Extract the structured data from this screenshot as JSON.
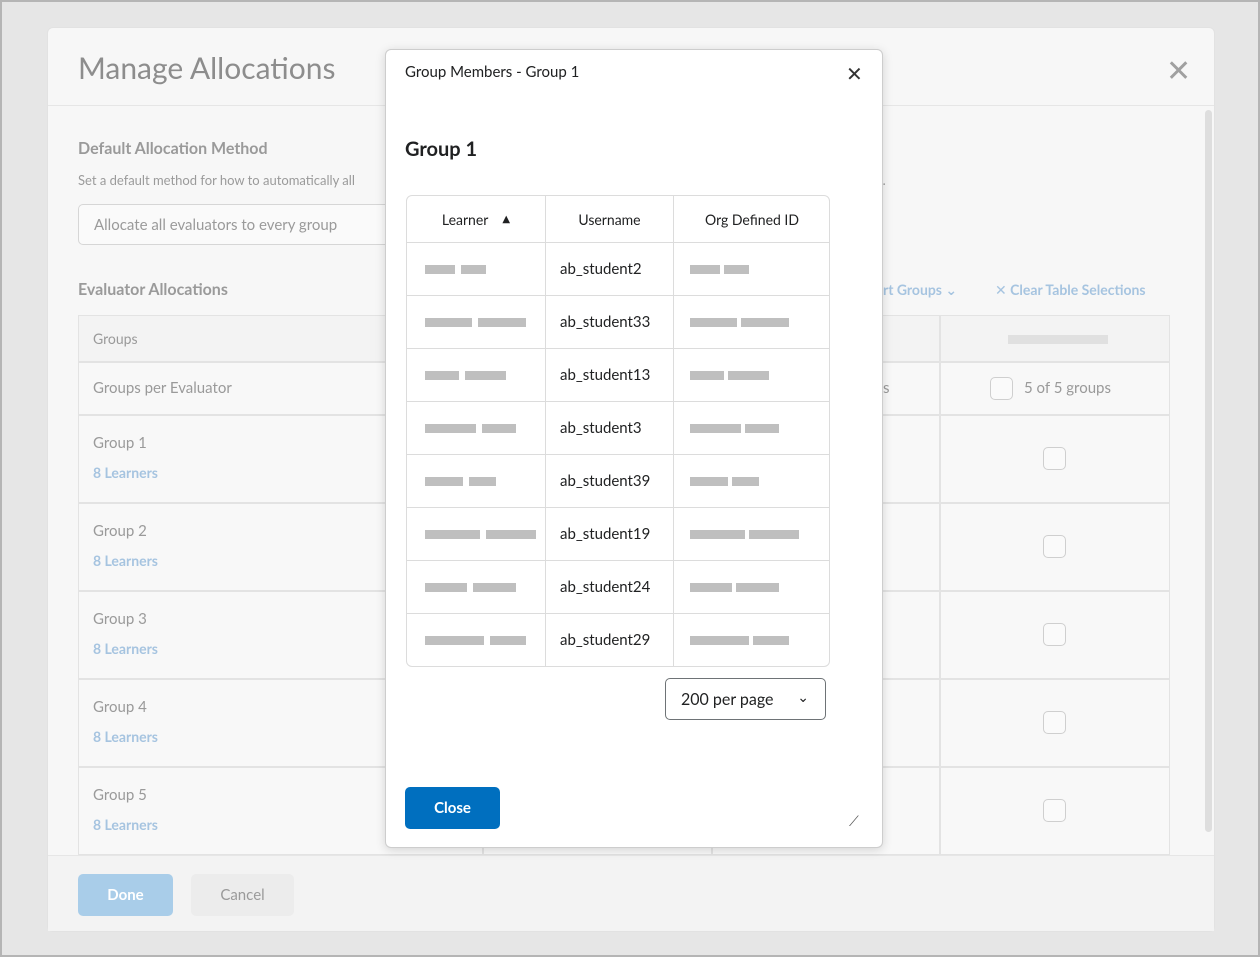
{
  "background": {
    "title": "Manage Allocations",
    "default_method": {
      "heading": "Default Allocation Method",
      "description_start": "Set a default method for how to automatically all",
      "description_end": "od.",
      "select": "Allocate all evaluators to every group"
    },
    "evaluator_allocations": {
      "heading": "Evaluator Allocations",
      "sort_groups": "rt Groups",
      "clear": "Clear Table Selections",
      "table": {
        "header": "Groups",
        "per_evaluator_row": "Groups per Evaluator",
        "per_evaluator_fragment": "s",
        "per_evaluator_count": "5 of 5 groups",
        "rows": [
          {
            "group": "Group 1",
            "learners": "8 Learners"
          },
          {
            "group": "Group 2",
            "learners": "8 Learners"
          },
          {
            "group": "Group 3",
            "learners": "8 Learners"
          },
          {
            "group": "Group 4",
            "learners": "8 Learners"
          },
          {
            "group": "Group 5",
            "learners": "8 Learners"
          }
        ]
      }
    },
    "buttons": {
      "done": "Done",
      "cancel": "Cancel"
    }
  },
  "dialog": {
    "title": "Group Members - Group 1",
    "heading": "Group 1",
    "table": {
      "columns": [
        "Learner",
        "Username",
        "Org Defined ID"
      ],
      "rows": [
        {
          "username": "ab_student2"
        },
        {
          "username": "ab_student33"
        },
        {
          "username": "ab_student13"
        },
        {
          "username": "ab_student3"
        },
        {
          "username": "ab_student39"
        },
        {
          "username": "ab_student19"
        },
        {
          "username": "ab_student24"
        },
        {
          "username": "ab_student29"
        }
      ]
    },
    "page_size": "200 per page",
    "close": "Close"
  }
}
